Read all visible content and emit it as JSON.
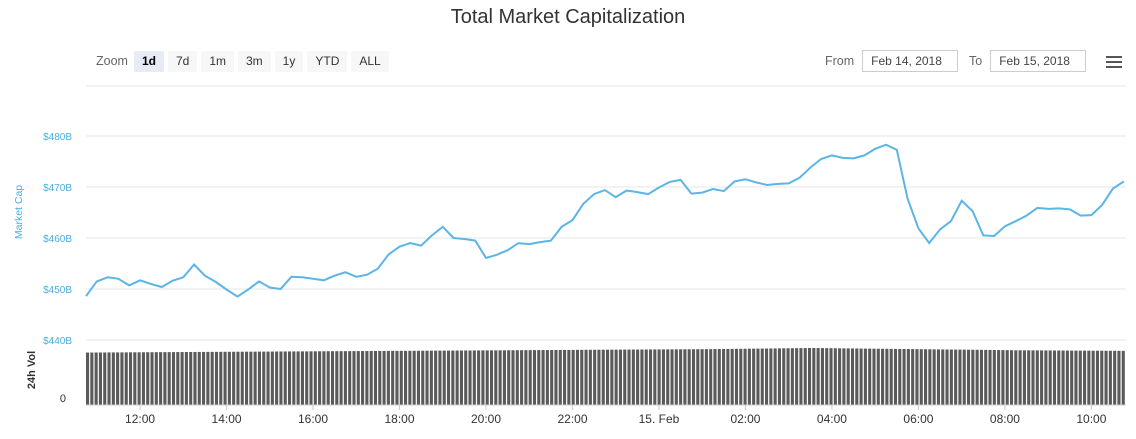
{
  "title": "Total Market Capitalization",
  "zoom": {
    "label": "Zoom",
    "buttons": [
      "1d",
      "7d",
      "1m",
      "3m",
      "1y",
      "YTD",
      "ALL"
    ],
    "active": "1d"
  },
  "range": {
    "from_label": "From",
    "from_value": "Feb 14, 2018",
    "to_label": "To",
    "to_value": "Feb 15, 2018"
  },
  "chart_data": {
    "type": "line",
    "ylabel": "Market Cap",
    "volume_label": "24h Vol",
    "volume_zero_label": "0",
    "y_ticks": [
      "$440B",
      "$450B",
      "$460B",
      "$470B",
      "$480B"
    ],
    "ylim": [
      440,
      480
    ],
    "x_ticks": [
      "12:00",
      "14:00",
      "16:00",
      "18:00",
      "20:00",
      "22:00",
      "15. Feb",
      "02:00",
      "04:00",
      "06:00",
      "08:00",
      "10:00"
    ],
    "xlim_hours": [
      10.75,
      34.8
    ],
    "line_color": "#5bb5e6",
    "volume_color": "#5a5a5a",
    "series": [
      {
        "x": [
          10.75,
          11.0,
          11.25,
          11.5,
          11.75,
          12.0,
          12.25,
          12.5,
          12.75,
          13.0,
          13.25,
          13.5,
          13.75,
          14.0,
          14.25,
          14.5,
          14.75,
          15.0,
          15.25,
          15.5,
          15.75,
          16.0,
          16.25,
          16.5,
          16.75,
          17.0,
          17.25,
          17.5,
          17.75,
          18.0,
          18.25,
          18.5,
          18.75,
          19.0,
          19.25,
          19.5,
          19.75,
          20.0,
          20.25,
          20.5,
          20.75,
          21.0,
          21.25,
          21.5,
          21.75,
          22.0,
          22.25,
          22.5,
          22.75,
          23.0,
          23.25,
          23.5,
          23.75,
          24.0,
          24.25,
          24.5,
          24.75,
          25.0,
          25.25,
          25.5,
          25.75,
          26.0,
          26.25,
          26.5,
          26.75,
          27.0,
          27.25,
          27.5,
          27.75,
          28.0,
          28.25,
          28.5,
          28.75,
          29.0,
          29.25,
          29.5,
          29.75,
          30.0,
          30.25,
          30.5,
          30.75,
          31.0,
          31.25,
          31.5,
          31.75,
          32.0,
          32.25,
          32.5,
          32.75,
          33.0,
          33.25,
          33.5,
          33.75,
          34.0,
          34.25,
          34.5,
          34.75
        ],
        "y": [
          448.6,
          451.5,
          452.3,
          452.0,
          450.7,
          451.7,
          451.0,
          450.4,
          451.6,
          452.3,
          454.8,
          452.6,
          451.4,
          449.9,
          448.5,
          449.9,
          451.5,
          450.3,
          450.0,
          452.4,
          452.3,
          452.0,
          451.7,
          452.6,
          453.3,
          452.4,
          452.8,
          454.0,
          456.8,
          458.3,
          459.0,
          458.5,
          460.5,
          462.2,
          460.0,
          459.8,
          459.5,
          456.1,
          456.7,
          457.6,
          459.0,
          458.8,
          459.2,
          459.5,
          462.2,
          463.5,
          466.7,
          468.6,
          469.4,
          468.0,
          469.3,
          469.0,
          468.6,
          469.9,
          471.0,
          471.4,
          468.7,
          468.9,
          469.6,
          469.2,
          471.1,
          471.5,
          470.9,
          470.4,
          470.6,
          470.7,
          471.8,
          473.8,
          475.5,
          476.2,
          475.7,
          475.6,
          476.2,
          477.5,
          478.3,
          477.3,
          467.7,
          461.9,
          459.0,
          461.7,
          463.3,
          467.3,
          465.3,
          460.5,
          460.4,
          462.3,
          463.3,
          464.4,
          465.9,
          465.7,
          465.8,
          465.6,
          464.4,
          464.5,
          466.5,
          469.7,
          471.1
        ]
      }
    ],
    "volume": {
      "bar_count": 242,
      "relative_levels": [
        0.92,
        0.93,
        0.94,
        0.95,
        0.96,
        0.97,
        0.98,
        1.0,
        0.98,
        0.96,
        0.95
      ]
    }
  }
}
